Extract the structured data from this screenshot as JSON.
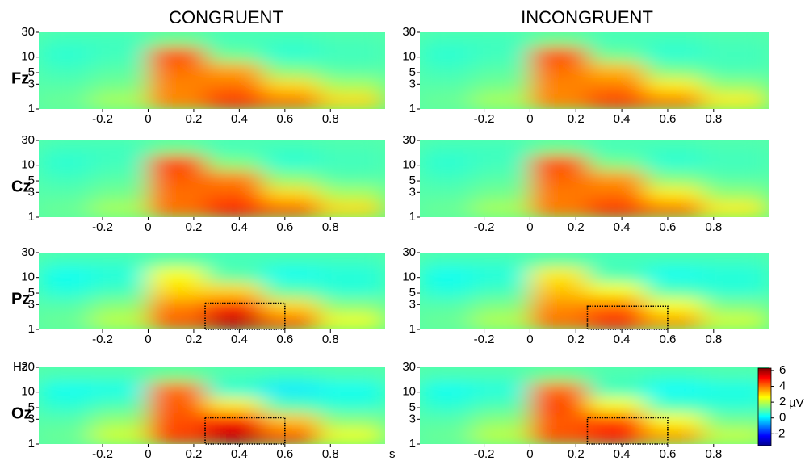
{
  "chart_data": {
    "type": "heatmap",
    "columns": [
      "CONGRUENT",
      "INCONGRUENT"
    ],
    "rows": [
      "Fz",
      "Cz",
      "Pz",
      "Oz"
    ],
    "xlim": [
      -0.48,
      1.04
    ],
    "xticks": [
      -0.2,
      0,
      0.2,
      0.4,
      0.6,
      0.8
    ],
    "ylim": [
      1,
      30
    ],
    "yticks": [
      1,
      3,
      5,
      10,
      30
    ],
    "y_scale": "log",
    "y_unit": "Hz",
    "x_unit": "s",
    "x_edges": [
      -0.48,
      -0.25,
      0,
      0.25,
      0.5,
      0.75,
      1.04
    ],
    "y_edges": [
      1,
      2,
      4,
      8,
      16,
      30
    ],
    "colormap": "jet",
    "colorbar": {
      "lim": [
        -3.5,
        6.3
      ],
      "ticks": [
        -2,
        0,
        2,
        4,
        6
      ],
      "label": "µV"
    },
    "panels": [
      [
        {
          "values": [
            [
              1.2,
              1.8,
              3.8,
              4.6,
              4,
              3
            ],
            [
              1,
              1.3,
              3.8,
              4,
              3,
              1.8
            ],
            [
              0.8,
              1,
              4,
              3.5,
              1.4,
              1
            ],
            [
              0.6,
              0.8,
              4.3,
              1.2,
              0.6,
              0.8
            ],
            [
              0.8,
              0.8,
              1.2,
              0.8,
              0.8,
              0.9
            ]
          ]
        },
        {
          "values": [
            [
              1.2,
              1.8,
              4,
              4.8,
              4.2,
              3
            ],
            [
              1,
              1.3,
              4,
              4.2,
              3,
              1.8
            ],
            [
              0.8,
              1,
              4.2,
              3.8,
              1.5,
              1
            ],
            [
              0.6,
              0.8,
              4.4,
              1.4,
              0.6,
              0.8
            ],
            [
              0.8,
              0.8,
              1.2,
              0.8,
              0.8,
              0.9
            ]
          ]
        },
        {
          "values": [
            [
              1.2,
              2,
              4.2,
              5.6,
              4.2,
              2.5
            ],
            [
              1,
              1.5,
              3.8,
              4.6,
              3,
              1.5
            ],
            [
              0.5,
              0.8,
              3,
              3,
              1,
              0.6
            ],
            [
              0.3,
              0.5,
              2.6,
              1,
              0.3,
              0.5
            ],
            [
              0.8,
              0.8,
              1,
              0.8,
              0.8,
              0.8
            ]
          ],
          "highlight": [
            0.25,
            0.6,
            1,
            3.2
          ]
        },
        {
          "values": [
            [
              1.2,
              2.2,
              4.5,
              5.6,
              4.4,
              2.5
            ],
            [
              1,
              1.6,
              4.3,
              5,
              3.2,
              1.5
            ],
            [
              0.6,
              0.9,
              4.2,
              2.8,
              0.9,
              0.6
            ],
            [
              0.3,
              0.4,
              4,
              0.6,
              0,
              0.3
            ],
            [
              0.9,
              0.9,
              1.2,
              0.9,
              0.8,
              0.9
            ]
          ],
          "highlight": [
            0.25,
            0.6,
            1,
            3.2
          ]
        }
      ],
      [
        {
          "values": [
            [
              1.2,
              1.8,
              3.8,
              4.5,
              3.9,
              2.8
            ],
            [
              1,
              1.3,
              3.8,
              3.9,
              2.8,
              1.6
            ],
            [
              0.8,
              1,
              4,
              3.3,
              1.3,
              0.9
            ],
            [
              0.6,
              0.8,
              4.3,
              1.2,
              0.6,
              0.8
            ],
            [
              0.8,
              0.8,
              1.2,
              0.8,
              0.8,
              0.9
            ]
          ]
        },
        {
          "values": [
            [
              1.2,
              1.8,
              3.9,
              4.6,
              4,
              2.8
            ],
            [
              1,
              1.3,
              3.9,
              4,
              2.8,
              1.6
            ],
            [
              0.8,
              1,
              4.1,
              3.6,
              1.4,
              1
            ],
            [
              0.6,
              0.8,
              4.3,
              1.3,
              0.6,
              0.8
            ],
            [
              0.8,
              0.8,
              1.2,
              0.8,
              0.8,
              0.9
            ]
          ]
        },
        {
          "values": [
            [
              1.2,
              1.9,
              4,
              4.8,
              3.6,
              2.2
            ],
            [
              1,
              1.4,
              3.7,
              4,
              2.6,
              1.4
            ],
            [
              0.5,
              0.8,
              3.2,
              2.6,
              0.9,
              0.6
            ],
            [
              0.3,
              0.5,
              2.8,
              0.9,
              0.3,
              0.5
            ],
            [
              0.8,
              0.8,
              1,
              0.8,
              0.8,
              0.8
            ]
          ],
          "highlight": [
            0.25,
            0.6,
            1,
            2.8
          ]
        },
        {
          "values": [
            [
              1.2,
              2,
              4.3,
              4.9,
              3.6,
              2.1
            ],
            [
              1,
              1.5,
              4.2,
              4.4,
              2.6,
              1.3
            ],
            [
              0.6,
              0.9,
              4.4,
              2.6,
              0.8,
              0.6
            ],
            [
              0.3,
              0.5,
              4,
              0.8,
              0.2,
              0.4
            ],
            [
              0.9,
              0.9,
              1.2,
              0.9,
              0.8,
              0.9
            ]
          ],
          "highlight": [
            0.25,
            0.6,
            1,
            3.2
          ]
        }
      ]
    ]
  }
}
